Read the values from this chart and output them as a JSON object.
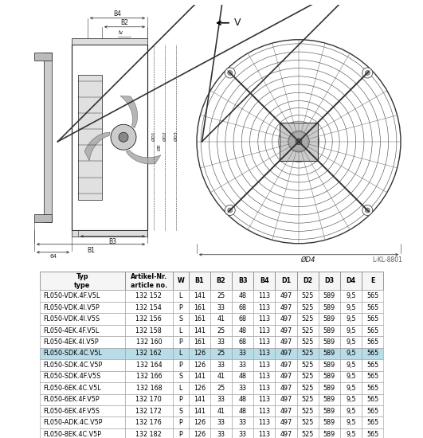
{
  "table_headers_row1": [
    "Typ",
    "Artikel-Nr.",
    "W",
    "B1",
    "B2",
    "B3",
    "B4",
    "D1",
    "D2",
    "D3",
    "D4",
    "E"
  ],
  "table_headers_row2": [
    "type",
    "article no.",
    "",
    "",
    "",
    "",
    "",
    "",
    "",
    "",
    "",
    ""
  ],
  "table_rows": [
    [
      "FL050-VDK.4F.V5L",
      "132 152",
      "L",
      "141",
      "25",
      "48",
      "113",
      "497",
      "525",
      "589",
      "9,5",
      "565"
    ],
    [
      "FL050-VDK.4I.V5P",
      "132 154",
      "P",
      "161",
      "33",
      "68",
      "113",
      "497",
      "525",
      "589",
      "9,5",
      "565"
    ],
    [
      "FL050-VDK.4I.V5S",
      "132 156",
      "S",
      "161",
      "41",
      "68",
      "113",
      "497",
      "525",
      "589",
      "9,5",
      "565"
    ],
    [
      "FL050-4EK.4F.V5L",
      "132 158",
      "L",
      "141",
      "25",
      "48",
      "113",
      "497",
      "525",
      "589",
      "9,5",
      "565"
    ],
    [
      "FL050-4EK.4I.V5P",
      "132 160",
      "P",
      "161",
      "33",
      "68",
      "113",
      "497",
      "525",
      "589",
      "9,5",
      "565"
    ],
    [
      "FL050-SDK.4C.V5L",
      "132 162",
      "L",
      "126",
      "25",
      "33",
      "113",
      "497",
      "525",
      "589",
      "9,5",
      "565"
    ],
    [
      "FL050-SDK.4C.V5P",
      "132 164",
      "P",
      "126",
      "33",
      "33",
      "113",
      "497",
      "525",
      "589",
      "9,5",
      "565"
    ],
    [
      "FL050-SDK.4F.V5S",
      "132 166",
      "S",
      "141",
      "41",
      "48",
      "113",
      "497",
      "525",
      "589",
      "9,5",
      "565"
    ],
    [
      "FL050-6EK.4C.V5L",
      "132 168",
      "L",
      "126",
      "25",
      "33",
      "113",
      "497",
      "525",
      "589",
      "9,5",
      "565"
    ],
    [
      "FL050-6EK.4F.V5P",
      "132 170",
      "P",
      "141",
      "33",
      "48",
      "113",
      "497",
      "525",
      "589",
      "9,5",
      "565"
    ],
    [
      "FL050-6EK.4F.V5S",
      "132 172",
      "S",
      "141",
      "41",
      "48",
      "113",
      "497",
      "525",
      "589",
      "9,5",
      "565"
    ],
    [
      "FL050-ADK.4C.V5P",
      "132 176",
      "P",
      "126",
      "33",
      "33",
      "113",
      "497",
      "525",
      "589",
      "9,5",
      "565"
    ],
    [
      "FL050-8EK.4C.V5P",
      "132 182",
      "P",
      "126",
      "33",
      "33",
      "113",
      "497",
      "525",
      "589",
      "9,5",
      "565"
    ]
  ],
  "highlighted_row": 5,
  "highlight_color": "#b8dce8",
  "bg_color": "#ffffff",
  "diagram_label": "L-KL-8801"
}
